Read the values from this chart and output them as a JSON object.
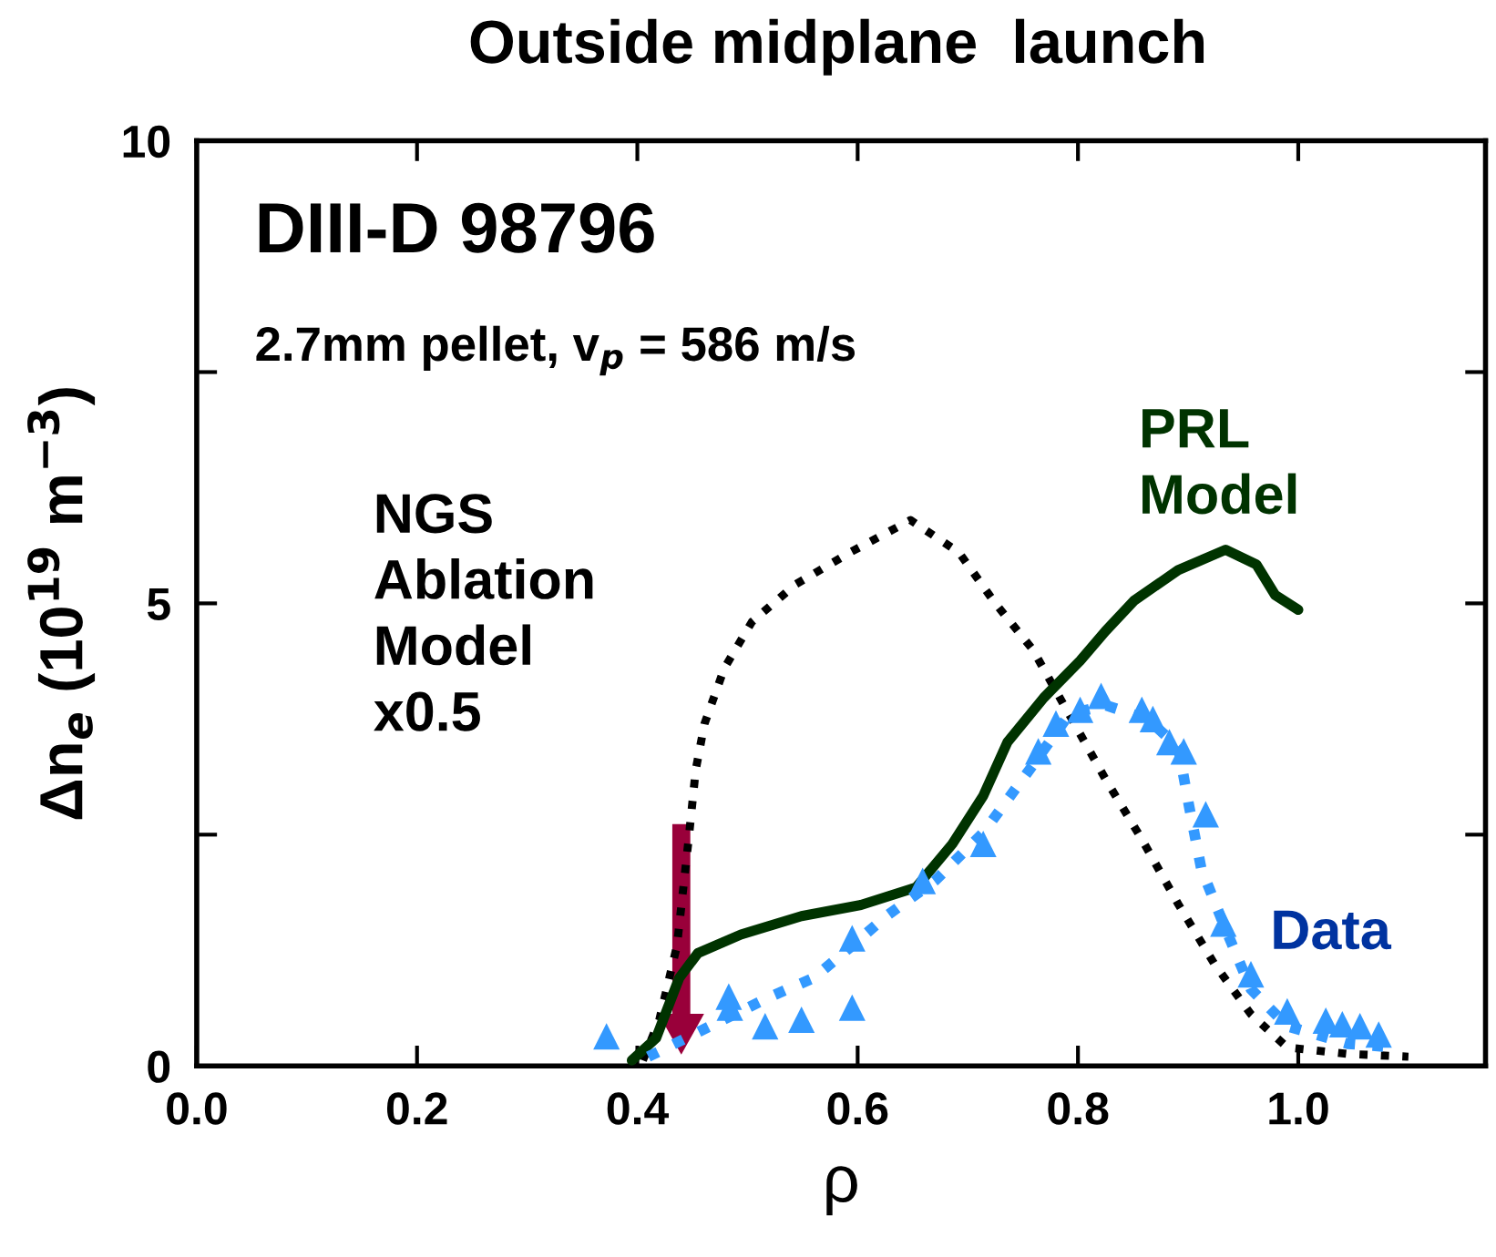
{
  "chart_data": {
    "type": "line",
    "title": "Outside midplane  launch",
    "xlabel": "ρ",
    "ylabel": "Δn$_{e}$ (10$^{19}$ m$^{−3}$)",
    "xlim": [
      0,
      1.17
    ],
    "xticks": [
      {
        "value": 0,
        "label": "0.0"
      },
      0.2,
      0.4,
      0.6,
      0.8,
      {
        "value": 1,
        "label": "1.0"
      }
    ],
    "ylim": [
      0,
      10
    ],
    "yticks": [
      0,
      {
        "value": 2.5,
        "label": null
      },
      5,
      {
        "value": 7.5,
        "label": null
      },
      10
    ],
    "grid": false,
    "legend": false,
    "annotations": [
      "DIII-D 98796",
      "2.7mm pellet, v$_{p}$ = 586 m/s"
    ],
    "series": [
      {
        "name": "NGS\nAblation\nModel\nx0.5",
        "line_style": "dotted",
        "marker": "none",
        "color": "#000000",
        "x": [
          0.405,
          0.42,
          0.436,
          0.447,
          0.453,
          0.461,
          0.479,
          0.504,
          0.543,
          0.593,
          0.648,
          0.692,
          0.725,
          0.759,
          0.792,
          0.825,
          0.858,
          0.891,
          0.924,
          0.957,
          0.99,
          1.045,
          1.1
        ],
        "values": [
          0.06,
          0.5,
          1.3,
          2.5,
          3.2,
          3.7,
          4.3,
          4.8,
          5.2,
          5.55,
          5.9,
          5.55,
          5.0,
          4.5,
          3.8,
          3.1,
          2.45,
          1.75,
          1.1,
          0.56,
          0.2,
          0.13,
          0.1
        ]
      },
      {
        "name": "PRL\nModel",
        "line_style": "solid",
        "marker": "none",
        "color": "#003300",
        "x": [
          0.395,
          0.417,
          0.438,
          0.455,
          0.494,
          0.549,
          0.603,
          0.653,
          0.686,
          0.714,
          0.736,
          0.769,
          0.802,
          0.825,
          0.851,
          0.891,
          0.934,
          0.962,
          0.979,
          1.0
        ],
        "values": [
          0.06,
          0.3,
          0.95,
          1.22,
          1.42,
          1.62,
          1.74,
          1.93,
          2.4,
          2.92,
          3.5,
          3.98,
          4.38,
          4.7,
          5.03,
          5.36,
          5.58,
          5.42,
          5.09,
          4.93
        ]
      },
      {
        "line_style": "dotted",
        "marker": "none",
        "color": "#3399ff",
        "x": [
          0.41,
          0.466,
          0.521,
          0.56,
          0.593,
          0.626,
          0.67,
          0.714,
          0.759,
          0.792,
          0.825,
          0.863,
          0.891,
          0.901,
          0.912,
          0.934,
          0.957,
          0.99,
          1.045,
          1.089
        ],
        "values": [
          0.1,
          0.43,
          0.75,
          0.95,
          1.28,
          1.62,
          2.0,
          2.52,
          3.25,
          3.8,
          3.9,
          3.75,
          3.45,
          2.8,
          2.13,
          1.48,
          0.83,
          0.43,
          0.24,
          0.2
        ]
      },
      {
        "name": "Data",
        "type": "scatter",
        "marker": "triangle",
        "color": "#3399ff",
        "x": [
          0.372,
          0.483,
          0.484,
          0.516,
          0.549,
          0.595,
          0.595,
          0.659,
          0.714,
          0.764,
          0.78,
          0.802,
          0.821,
          0.858,
          0.868,
          0.883,
          0.896,
          0.916,
          0.932,
          0.957,
          0.99,
          1.025,
          1.04,
          1.056,
          1.073
        ],
        "values": [
          0.32,
          0.75,
          0.63,
          0.43,
          0.5,
          0.63,
          1.38,
          2.0,
          2.4,
          3.4,
          3.7,
          3.85,
          4.0,
          3.85,
          3.75,
          3.5,
          3.4,
          2.72,
          1.54,
          0.99,
          0.59,
          0.49,
          0.45,
          0.43,
          0.34
        ]
      }
    ]
  }
}
